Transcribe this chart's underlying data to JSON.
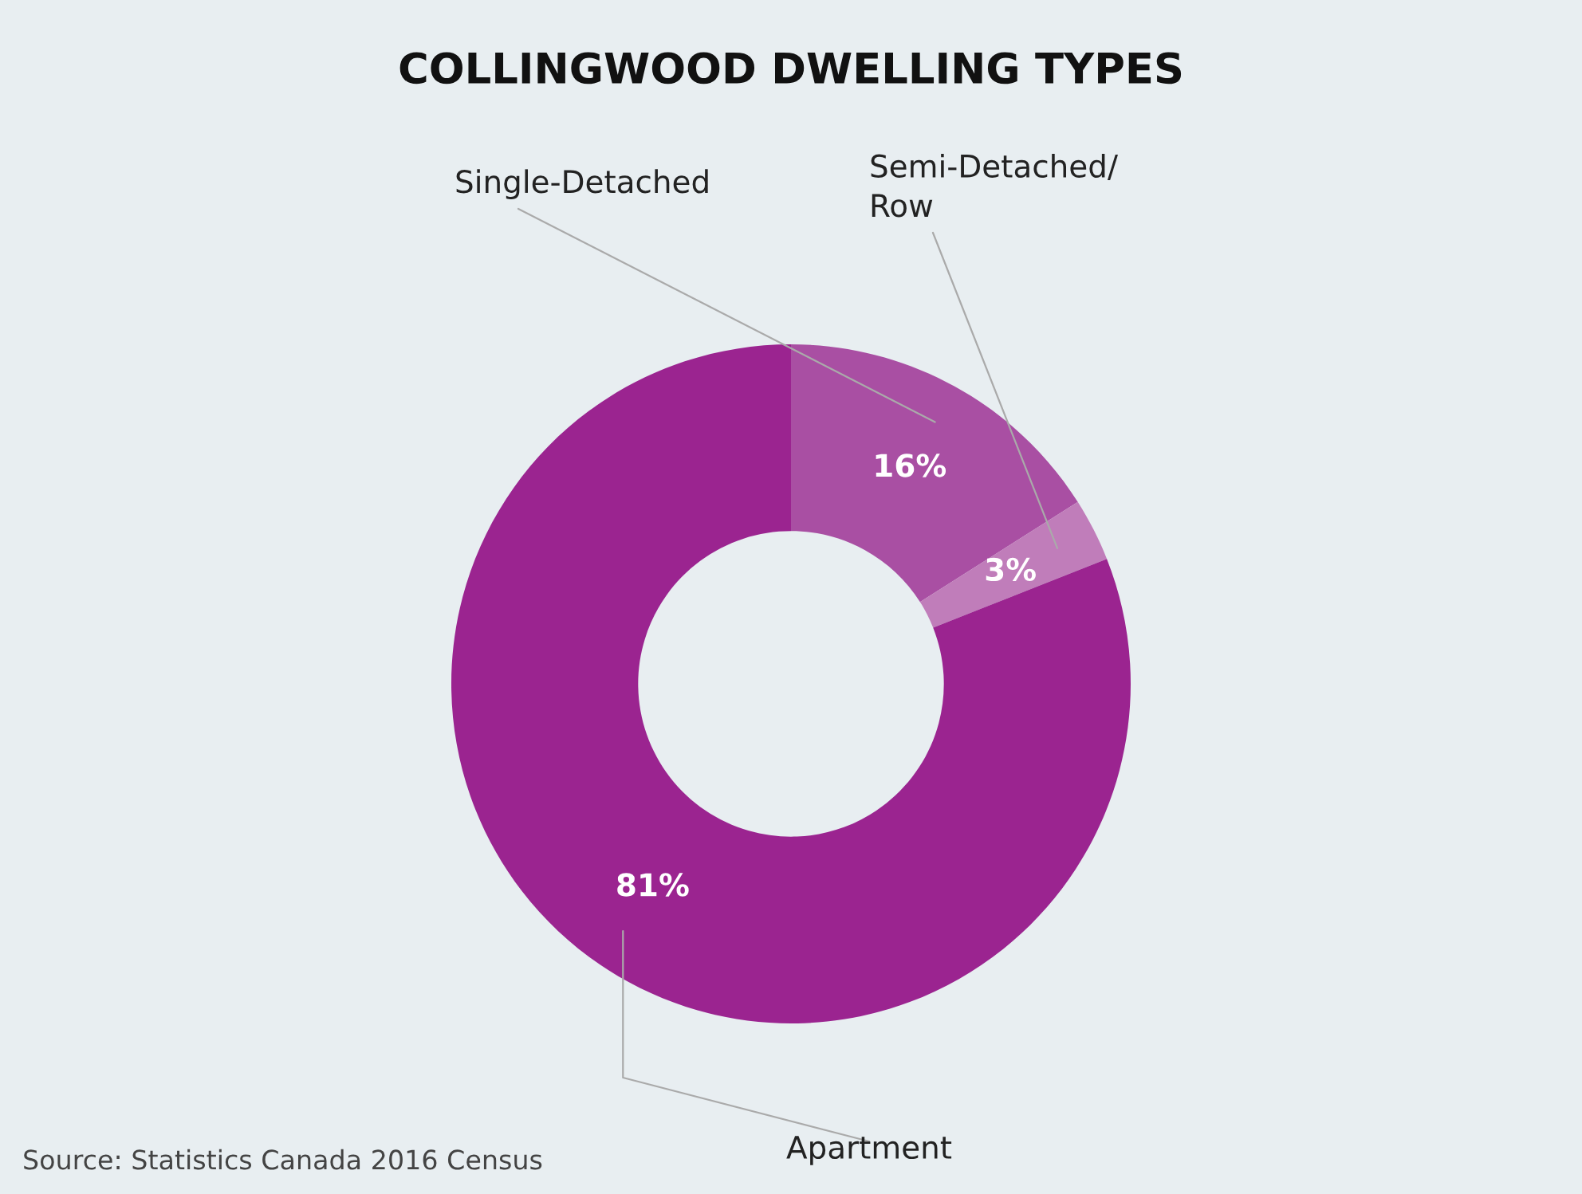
{
  "chart_data": {
    "type": "donut",
    "title": "COLLINGWOOD DWELLING TYPES",
    "categories": [
      "Single-Detached",
      "Semi-Detached/\nRow",
      "Apartment"
    ],
    "values": [
      16,
      3,
      81
    ],
    "colors": [
      "#a94fa3",
      "#c07dba",
      "#9b2490"
    ],
    "value_labels": [
      "16%",
      "3%",
      "81%"
    ],
    "annotations": [
      "Source: Statistics Canada 2016 Census"
    ]
  }
}
